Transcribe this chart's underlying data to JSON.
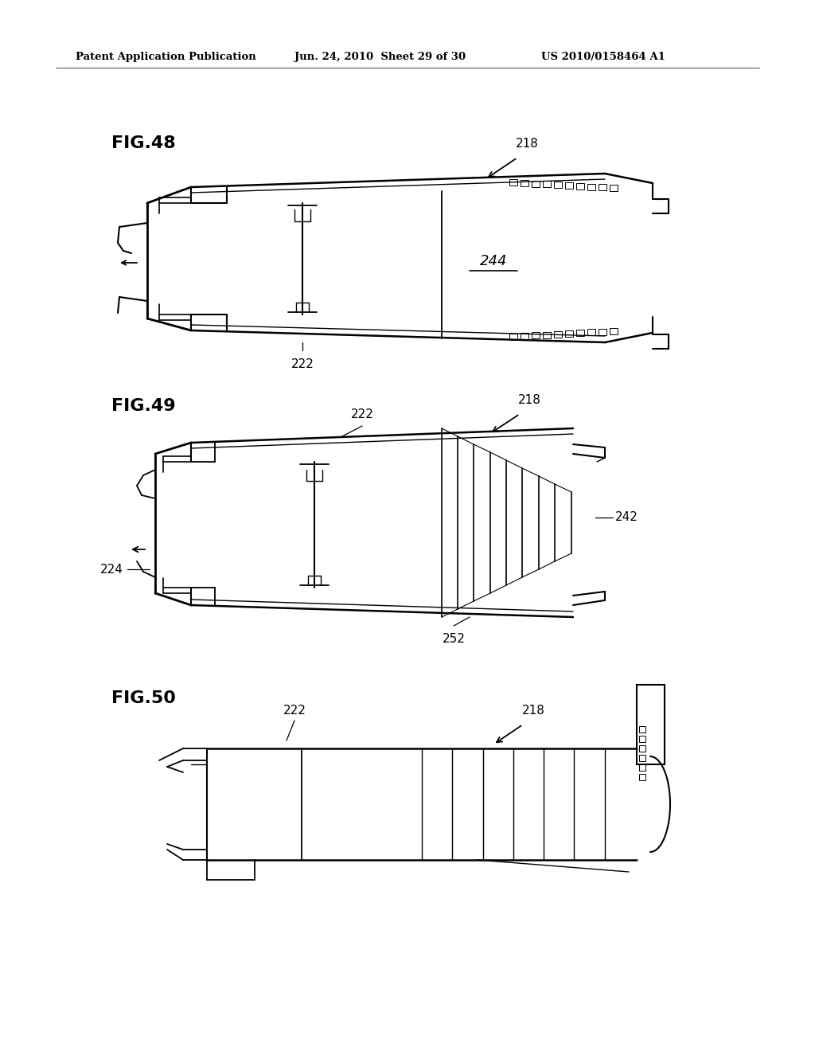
{
  "background_color": "#ffffff",
  "header_text": "Patent Application Publication",
  "header_date": "Jun. 24, 2010  Sheet 29 of 30",
  "header_patent": "US 2010/0158464 A1",
  "header_fontsize": 9.5,
  "fig48_label": "FIG.48",
  "fig49_label": "FIG.49",
  "fig50_label": "FIG.50",
  "label_fontsize": 16,
  "annotation_fontsize": 11,
  "line_color": "#000000",
  "line_width": 1.3
}
